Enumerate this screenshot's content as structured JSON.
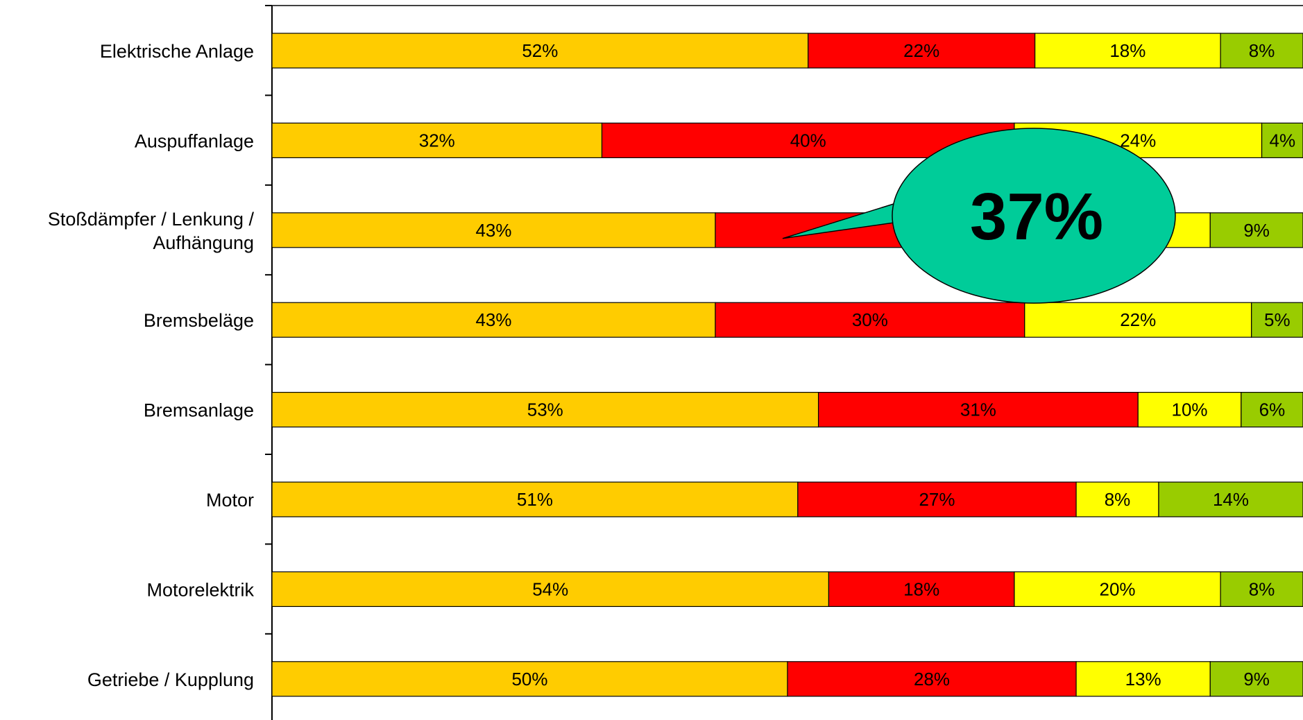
{
  "chart_data": {
    "type": "bar",
    "orientation": "horizontal",
    "stacked": "100%",
    "categories": [
      "Elektrische Anlage",
      "Auspuffanlage",
      "Stoßdämpfer / Lenkung / Aufhängung",
      "Bremsbeläge",
      "Bremsanlage",
      "Motor",
      "Motorelektrik",
      "Getriebe / Kupplung"
    ],
    "category_lines": [
      [
        "Elektrische Anlage"
      ],
      [
        "Auspuffanlage"
      ],
      [
        "Stoßdämpfer / Lenkung /",
        "Aufhängung"
      ],
      [
        "Bremsbeläge"
      ],
      [
        "Bremsanlage"
      ],
      [
        "Motor"
      ],
      [
        "Motorelektrik"
      ],
      [
        "Getriebe / Kupplung"
      ]
    ],
    "series": [
      {
        "color": "#ffcc00",
        "values": [
          52,
          32,
          43,
          43,
          53,
          51,
          54,
          50
        ],
        "labels": [
          "52%",
          "32%",
          "43%",
          "43%",
          "53%",
          "51%",
          "54%",
          "50%"
        ]
      },
      {
        "color": "#ff0000",
        "values": [
          22,
          40,
          37,
          30,
          31,
          27,
          18,
          28
        ],
        "labels": [
          "22%",
          "40%",
          "",
          "30%",
          "31%",
          "27%",
          "18%",
          "28%"
        ]
      },
      {
        "color": "#ffff00",
        "values": [
          18,
          24,
          11,
          22,
          10,
          8,
          20,
          13
        ],
        "labels": [
          "18%",
          "24%",
          "",
          "22%",
          "10%",
          "8%",
          "20%",
          "13%"
        ]
      },
      {
        "color": "#99cc00",
        "values": [
          8,
          4,
          9,
          5,
          6,
          14,
          8,
          9
        ],
        "labels": [
          "8%",
          "4%",
          "9%",
          "5%",
          "6%",
          "14%",
          "8%",
          "9%"
        ]
      }
    ],
    "xlim": [
      0,
      100
    ],
    "grid": false,
    "legend": "none",
    "callout": {
      "text": "37%",
      "color": "#00cc99",
      "points_to_category": "Stoßdämpfer / Lenkung / Aufhängung"
    }
  }
}
